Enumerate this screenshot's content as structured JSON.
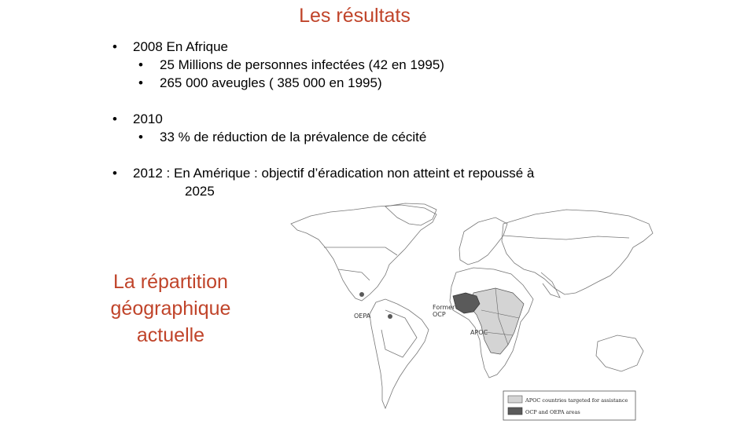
{
  "slide": {
    "title": "Les résultats",
    "bullet_glyph": "•",
    "bullets": [
      {
        "text": "2008 En Afrique",
        "sub": [
          "25 Millions de personnes infectées (42 en 1995)",
          "265 000 aveugles  ( 385 000 en 1995)"
        ]
      },
      {
        "text": "2010",
        "sub": [
          "33 % de réduction de la prévalence  de cécité"
        ]
      },
      {
        "text": "2012 :   En Amérique  : objectif d’éradication non atteint et repoussé à",
        "continuation": "2025"
      }
    ],
    "side_title_lines": [
      "La répartition",
      "géographique",
      "actuelle"
    ]
  },
  "map": {
    "labels": {
      "oepa": "OEPA",
      "former_ocp_1": "Former",
      "former_ocp_2": "OCP",
      "apoc": "APOC"
    },
    "legend": [
      {
        "label": "APOC countries targeted for assistance",
        "color": "#d4d4d4"
      },
      {
        "label": "OCP and OEPA areas",
        "color": "#5a5a5a"
      }
    ]
  }
}
